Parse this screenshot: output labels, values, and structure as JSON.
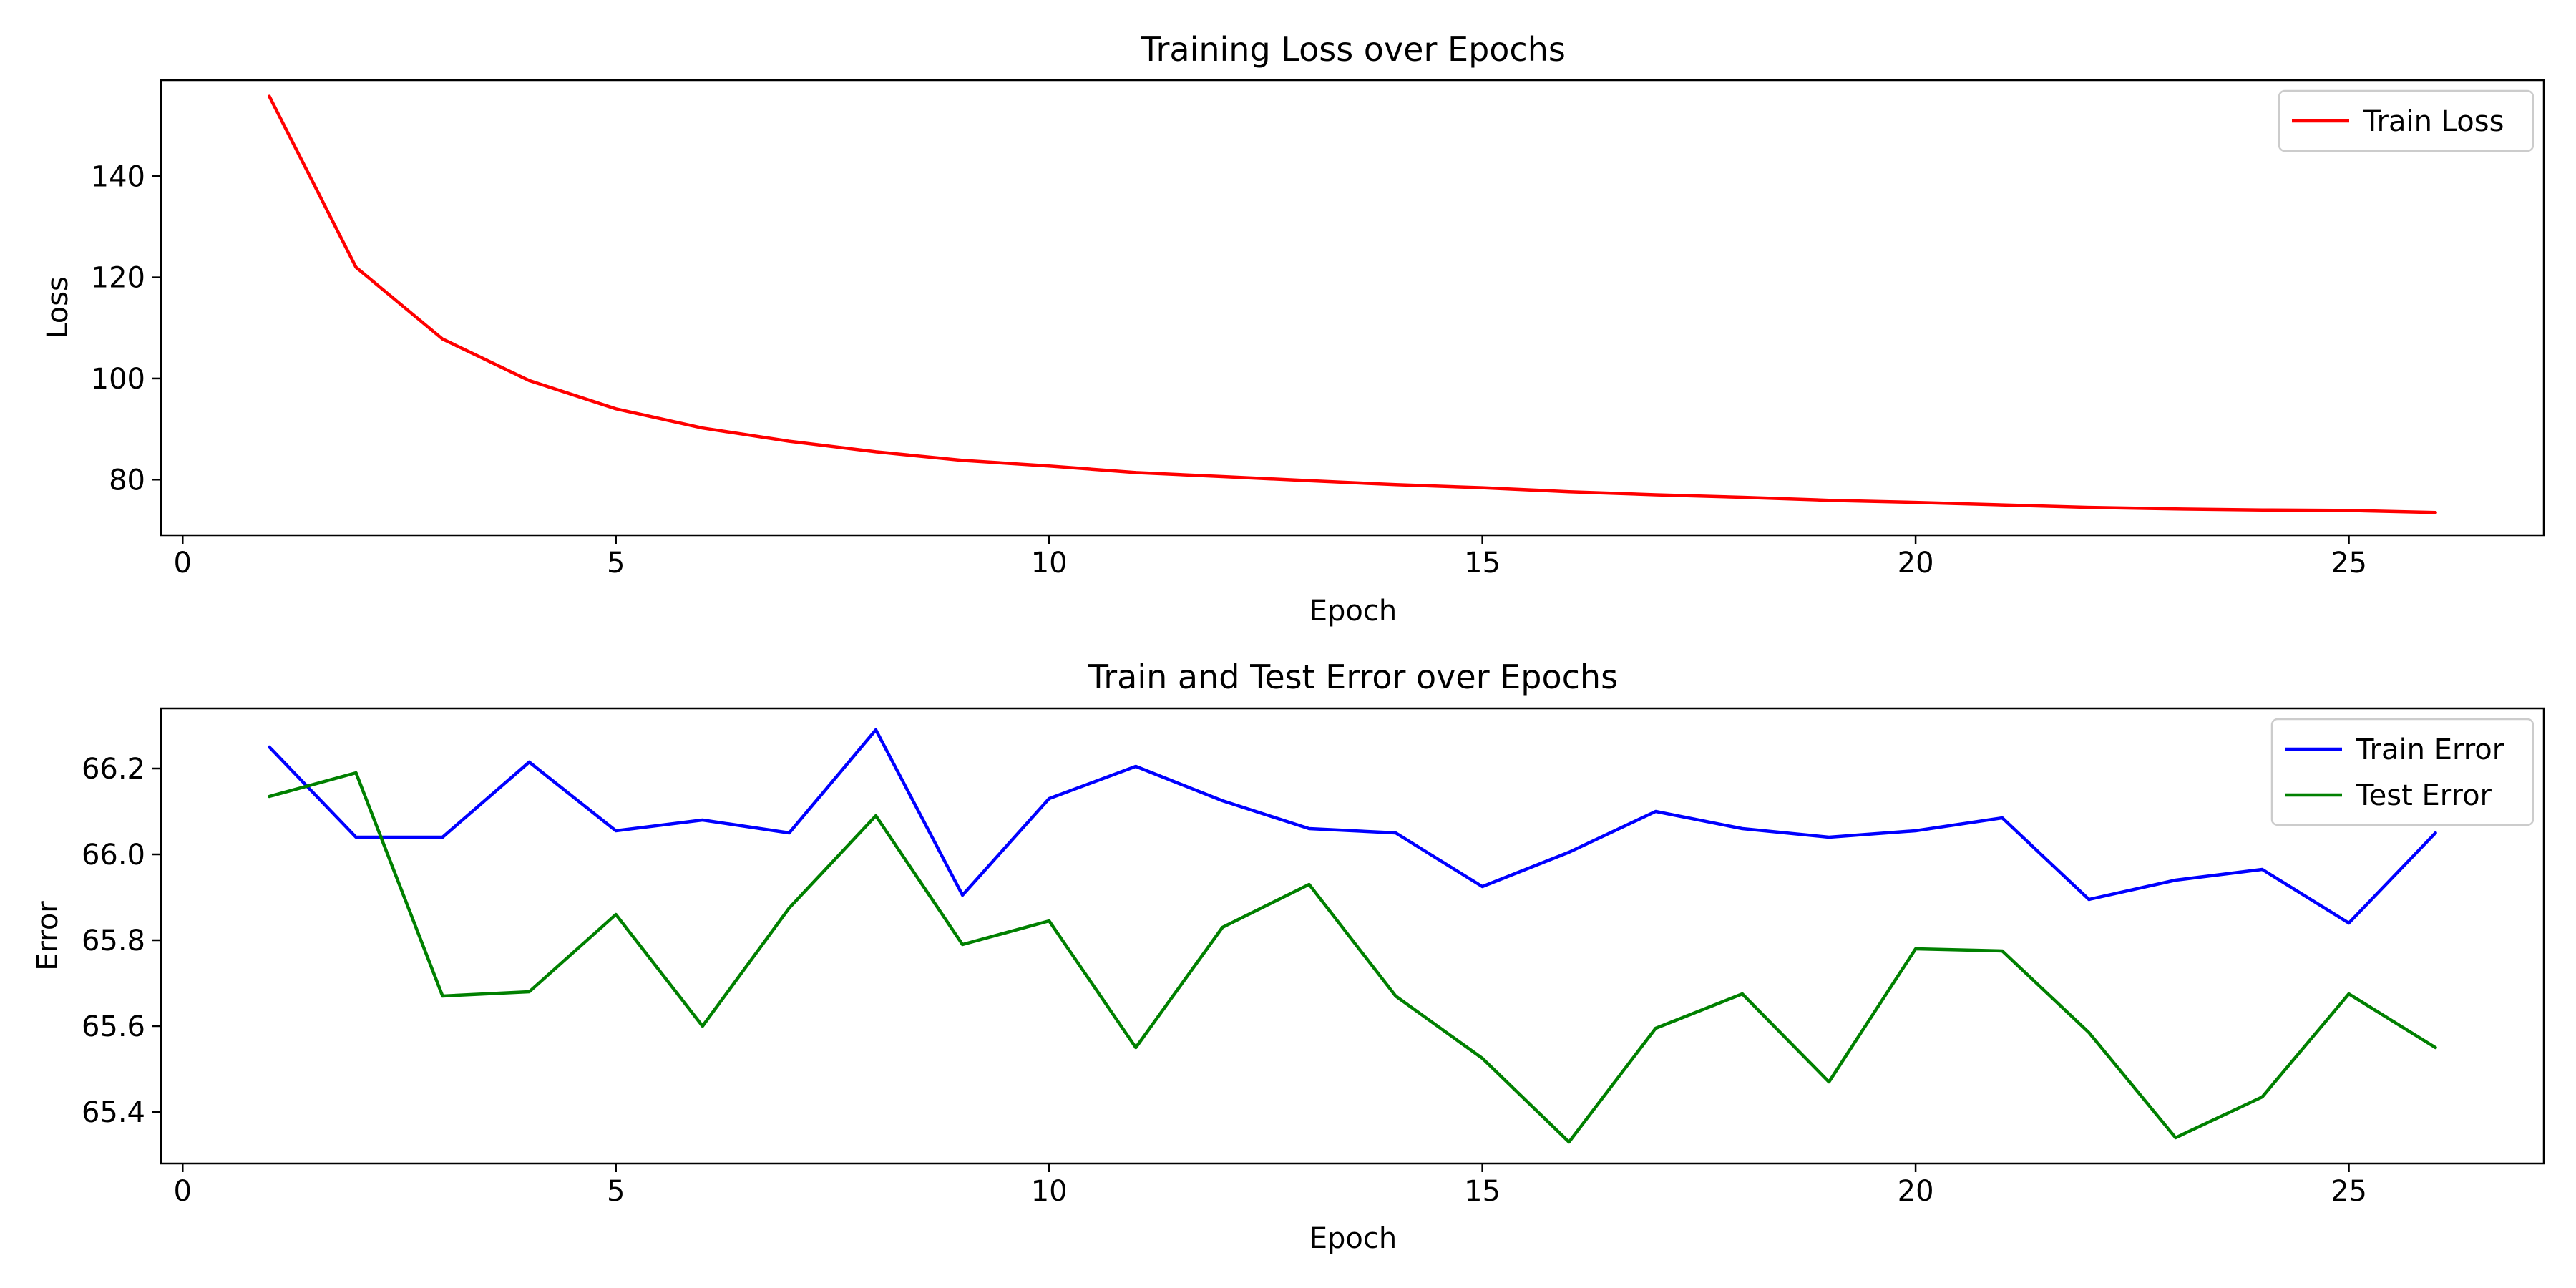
{
  "chart_data": [
    {
      "type": "line",
      "title": "Training Loss over Epochs",
      "xlabel": "Epoch",
      "ylabel": "Loss",
      "xlim": [
        -0.25,
        27.25
      ],
      "ylim": [
        69,
        159
      ],
      "xticks": [
        0,
        5,
        10,
        15,
        20,
        25
      ],
      "yticks": [
        80,
        100,
        120,
        140
      ],
      "grid": false,
      "legend": "top-right",
      "x": [
        1,
        2,
        3,
        4,
        5,
        6,
        7,
        8,
        9,
        10,
        11,
        12,
        13,
        14,
        15,
        16,
        17,
        18,
        19,
        20,
        21,
        22,
        23,
        24,
        25,
        26
      ],
      "series": [
        {
          "name": "Train Loss",
          "color": "#ff0000",
          "values": [
            155.8,
            122.0,
            107.8,
            99.6,
            94.0,
            90.2,
            87.6,
            85.5,
            83.8,
            82.7,
            81.4,
            80.6,
            79.8,
            79.0,
            78.4,
            77.6,
            77.0,
            76.5,
            75.9,
            75.5,
            75.0,
            74.5,
            74.2,
            74.0,
            73.9,
            73.5
          ]
        }
      ]
    },
    {
      "type": "line",
      "title": "Train and Test Error over Epochs",
      "xlabel": "Epoch",
      "ylabel": "Error",
      "xlim": [
        -0.25,
        27.25
      ],
      "ylim": [
        65.28,
        66.34
      ],
      "xticks": [
        0,
        5,
        10,
        15,
        20,
        25
      ],
      "yticks": [
        65.4,
        65.6,
        65.8,
        66.0,
        66.2
      ],
      "grid": false,
      "legend": "top-right",
      "x": [
        1,
        2,
        3,
        4,
        5,
        6,
        7,
        8,
        9,
        10,
        11,
        12,
        13,
        14,
        15,
        16,
        17,
        18,
        19,
        20,
        21,
        22,
        23,
        24,
        25,
        26
      ],
      "series": [
        {
          "name": "Train Error",
          "color": "#0000ff",
          "values": [
            66.25,
            66.04,
            66.04,
            66.215,
            66.055,
            66.08,
            66.05,
            66.29,
            65.905,
            66.13,
            66.205,
            66.125,
            66.06,
            66.05,
            65.925,
            66.005,
            66.1,
            66.06,
            66.04,
            66.055,
            66.085,
            65.895,
            65.94,
            65.965,
            65.84,
            66.05
          ]
        },
        {
          "name": "Test Error",
          "color": "#008000",
          "values": [
            66.135,
            66.19,
            65.67,
            65.68,
            65.86,
            65.6,
            65.875,
            66.09,
            65.79,
            65.845,
            65.55,
            65.83,
            65.93,
            65.67,
            65.525,
            65.33,
            65.595,
            65.675,
            65.47,
            65.78,
            65.775,
            65.585,
            65.34,
            65.435,
            65.675,
            65.55
          ]
        }
      ]
    }
  ]
}
